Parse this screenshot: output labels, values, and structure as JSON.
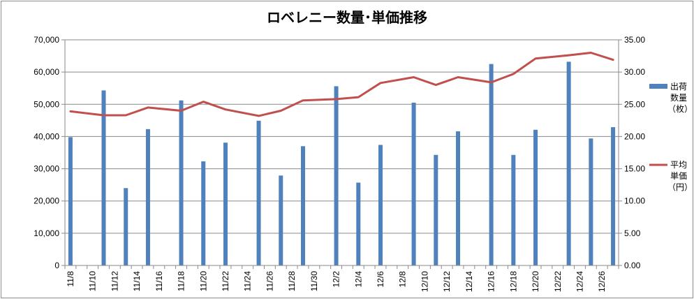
{
  "chart_data": {
    "type": "bar",
    "title": "ロベレニー数量･単価推移",
    "x": [
      "11/8",
      "11/9",
      "11/10",
      "11/11",
      "11/12",
      "11/13",
      "11/14",
      "11/15",
      "11/16",
      "11/17",
      "11/18",
      "11/19",
      "11/20",
      "11/21",
      "11/22",
      "11/23",
      "11/24",
      "11/25",
      "11/26",
      "11/27",
      "11/28",
      "11/29",
      "11/30",
      "12/1",
      "12/2",
      "12/3",
      "12/4",
      "12/5",
      "12/6",
      "12/7",
      "12/8",
      "12/9",
      "12/10",
      "12/11",
      "12/12",
      "12/13",
      "12/14",
      "12/15",
      "12/16",
      "12/17",
      "12/18",
      "12/19",
      "12/20",
      "12/21",
      "12/22",
      "12/23",
      "12/24",
      "12/25",
      "12/26",
      "12/27"
    ],
    "x_tick_labels": [
      "11/8",
      "11/10",
      "11/12",
      "11/14",
      "11/16",
      "11/18",
      "11/20",
      "11/22",
      "11/24",
      "11/26",
      "11/28",
      "11/30",
      "12/2",
      "12/4",
      "12/6",
      "12/8",
      "12/10",
      "12/12",
      "12/14",
      "12/16",
      "12/18",
      "12/20",
      "12/22",
      "12/24",
      "12/26"
    ],
    "series": [
      {
        "name": "出荷数量（枚）",
        "type": "bar",
        "axis": "left",
        "color": "#4f81bd",
        "points": [
          {
            "x": "11/8",
            "y": 39800
          },
          {
            "x": "11/11",
            "y": 54300
          },
          {
            "x": "11/13",
            "y": 24000
          },
          {
            "x": "11/15",
            "y": 42300
          },
          {
            "x": "11/18",
            "y": 51200
          },
          {
            "x": "11/20",
            "y": 32300
          },
          {
            "x": "11/22",
            "y": 38100
          },
          {
            "x": "11/25",
            "y": 44900
          },
          {
            "x": "11/27",
            "y": 27900
          },
          {
            "x": "11/29",
            "y": 37000
          },
          {
            "x": "12/2",
            "y": 55600
          },
          {
            "x": "12/4",
            "y": 25700
          },
          {
            "x": "12/6",
            "y": 37400
          },
          {
            "x": "12/9",
            "y": 50500
          },
          {
            "x": "12/11",
            "y": 34300
          },
          {
            "x": "12/13",
            "y": 41600
          },
          {
            "x": "12/16",
            "y": 62500
          },
          {
            "x": "12/18",
            "y": 34300
          },
          {
            "x": "12/20",
            "y": 42100
          },
          {
            "x": "12/23",
            "y": 63200
          },
          {
            "x": "12/25",
            "y": 39400
          },
          {
            "x": "12/27",
            "y": 42900
          }
        ]
      },
      {
        "name": "平均単価（円）",
        "type": "line",
        "axis": "right",
        "color": "#c0504d",
        "points": [
          {
            "x": "11/8",
            "y": 23.9
          },
          {
            "x": "11/11",
            "y": 23.3
          },
          {
            "x": "11/13",
            "y": 23.3
          },
          {
            "x": "11/15",
            "y": 24.5
          },
          {
            "x": "11/18",
            "y": 24.0
          },
          {
            "x": "11/20",
            "y": 25.4
          },
          {
            "x": "11/22",
            "y": 24.2
          },
          {
            "x": "11/25",
            "y": 23.2
          },
          {
            "x": "11/27",
            "y": 24.0
          },
          {
            "x": "11/29",
            "y": 25.6
          },
          {
            "x": "12/2",
            "y": 25.8
          },
          {
            "x": "12/4",
            "y": 26.1
          },
          {
            "x": "12/6",
            "y": 28.3
          },
          {
            "x": "12/9",
            "y": 29.2
          },
          {
            "x": "12/11",
            "y": 28.0
          },
          {
            "x": "12/13",
            "y": 29.2
          },
          {
            "x": "12/16",
            "y": 28.4
          },
          {
            "x": "12/18",
            "y": 29.7
          },
          {
            "x": "12/20",
            "y": 32.1
          },
          {
            "x": "12/23",
            "y": 32.6
          },
          {
            "x": "12/25",
            "y": 33.0
          },
          {
            "x": "12/27",
            "y": 31.9
          }
        ]
      }
    ],
    "y_left": {
      "min": 0,
      "max": 70000,
      "step": 10000,
      "tick_labels": [
        "0",
        "10,000",
        "20,000",
        "30,000",
        "40,000",
        "50,000",
        "60,000",
        "70,000"
      ]
    },
    "y_right": {
      "min": 0,
      "max": 35,
      "step": 5,
      "tick_labels": [
        "0.00",
        "5.00",
        "10.00",
        "15.00",
        "20.00",
        "25.00",
        "30.00",
        "35.00"
      ]
    },
    "grid": "horizontal",
    "legend_position": "right",
    "legend": [
      {
        "lines": [
          "出荷",
          "数量",
          "（枚）"
        ],
        "marker": "bar",
        "color": "#4f81bd"
      },
      {
        "lines": [
          "平均",
          "単価",
          "（円）"
        ],
        "marker": "line",
        "color": "#c0504d"
      }
    ]
  }
}
